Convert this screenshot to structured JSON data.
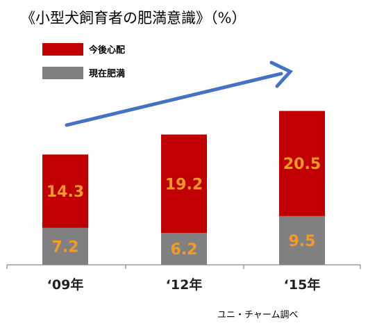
{
  "chart_data": {
    "type": "bar",
    "stacked": true,
    "title": "《小型犬飼育者の肥満意識》（%）",
    "categories": [
      "‘09年",
      "‘12年",
      "‘15年"
    ],
    "series": [
      {
        "name": "現在肥満",
        "values": [
          7.2,
          6.2,
          9.5
        ],
        "color": "#808080"
      },
      {
        "name": "今後心配",
        "values": [
          14.3,
          19.2,
          20.5
        ],
        "color": "#c00000"
      }
    ],
    "legend_position": "top-left",
    "grid": false,
    "ylim": [
      0,
      30
    ],
    "arrow_color": "#4472c4",
    "value_label_color": "#f59a23",
    "source": "ユニ・チャーム調べ"
  }
}
